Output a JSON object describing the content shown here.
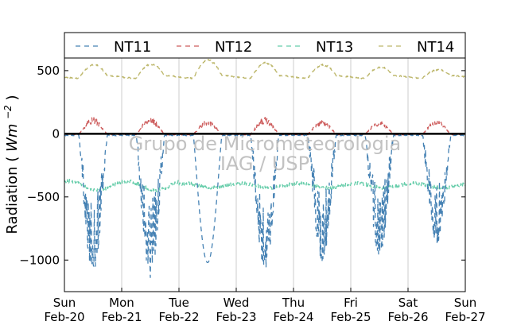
{
  "chart_data": {
    "type": "line",
    "ylabel": "Radiation",
    "ylabel_unit": "Wm",
    "ylabel_exponent": "−2",
    "ylim": [
      -1250,
      600
    ],
    "yticks": [
      500,
      0,
      -500,
      -1000
    ],
    "ytick_labels": [
      "500",
      "0",
      "−500",
      "−1000"
    ],
    "xlim": [
      "2011-02-20",
      "2011-02-27"
    ],
    "xticks": [
      {
        "day": "Sun",
        "date": "Feb-20"
      },
      {
        "day": "Mon",
        "date": "Feb-21"
      },
      {
        "day": "Tue",
        "date": "Feb-22"
      },
      {
        "day": "Wed",
        "date": "Feb-23"
      },
      {
        "day": "Thu",
        "date": "Feb-24"
      },
      {
        "day": "Fri",
        "date": "Feb-25"
      },
      {
        "day": "Sat",
        "date": "Feb-26"
      },
      {
        "day": "Sun",
        "date": "Feb-27"
      }
    ],
    "grid": "vertical",
    "legend_position": "top",
    "series": [
      {
        "name": "NT11",
        "color": "#4682b4",
        "style": "dashed",
        "daily_min": [
          -1100,
          -1140,
          -1020,
          -1080,
          -1010,
          -960,
          -870
        ]
      },
      {
        "name": "NT12",
        "color": "#cd5c5c",
        "style": "dashed",
        "daily_max": [
          130,
          130,
          110,
          130,
          110,
          100,
          110
        ]
      },
      {
        "name": "NT13",
        "color": "#66cdaa",
        "style": "dashed",
        "mean": -410
      },
      {
        "name": "NT14",
        "color": "#bdb76b",
        "style": "dashed",
        "daily_max": [
          550,
          555,
          590,
          565,
          550,
          530,
          510
        ],
        "night_level": 450
      }
    ],
    "watermark": [
      "Grupo de Micrometeorologia",
      "IAG / USP"
    ]
  }
}
